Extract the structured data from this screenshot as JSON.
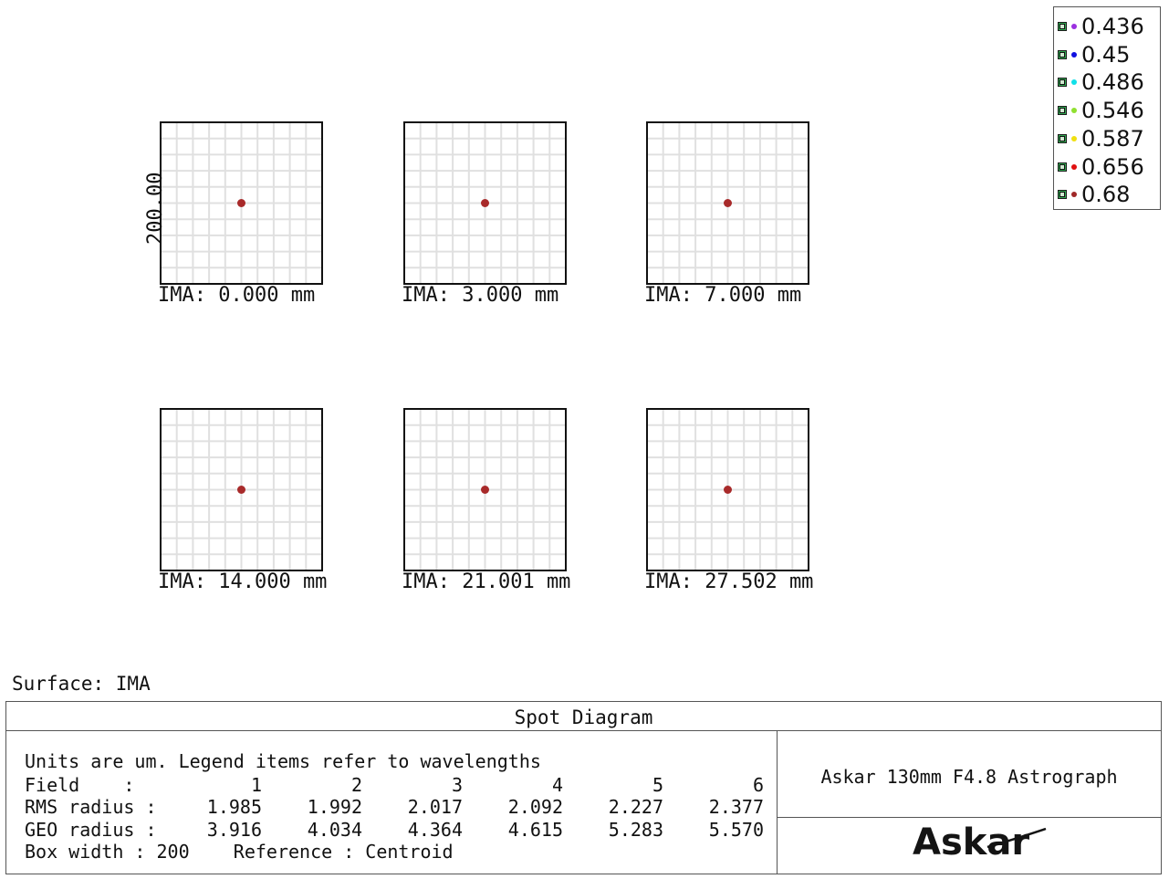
{
  "axis_scale": "200.00",
  "fields": [
    {
      "label": "IMA: 0.000 mm"
    },
    {
      "label": "IMA: 3.000 mm"
    },
    {
      "label": "IMA: 7.000 mm"
    },
    {
      "label": "IMA: 14.000 mm"
    },
    {
      "label": "IMA: 21.001 mm"
    },
    {
      "label": "IMA: 27.502 mm"
    }
  ],
  "legend": [
    {
      "label": "0.436",
      "color": "#9b30e0"
    },
    {
      "label": "0.45",
      "color": "#1010e0"
    },
    {
      "label": "0.486",
      "color": "#10e0e8"
    },
    {
      "label": "0.546",
      "color": "#90e030"
    },
    {
      "label": "0.587",
      "color": "#f0e010"
    },
    {
      "label": "0.656",
      "color": "#e01010"
    },
    {
      "label": "0.68",
      "color": "#a02828"
    }
  ],
  "spot_color": "#a82a2a",
  "surface": "Surface: IMA",
  "title": "Spot Diagram",
  "units_line": "Units are um. Legend items refer to wavelengths",
  "table": {
    "field_label": "Field    :",
    "rms_label": "RMS radius :",
    "geo_label": "GEO radius :",
    "fields": [
      "1",
      "2",
      "3",
      "4",
      "5",
      "6"
    ],
    "rms": [
      "1.985",
      "1.992",
      "2.017",
      "2.092",
      "2.227",
      "2.377"
    ],
    "geo": [
      "3.916",
      "4.034",
      "4.364",
      "4.615",
      "5.283",
      "5.570"
    ]
  },
  "box_width_line": "Box width : 200    Reference : Centroid",
  "system_name": "Askar 130mm F4.8 Astrograph",
  "logo": "Askar"
}
